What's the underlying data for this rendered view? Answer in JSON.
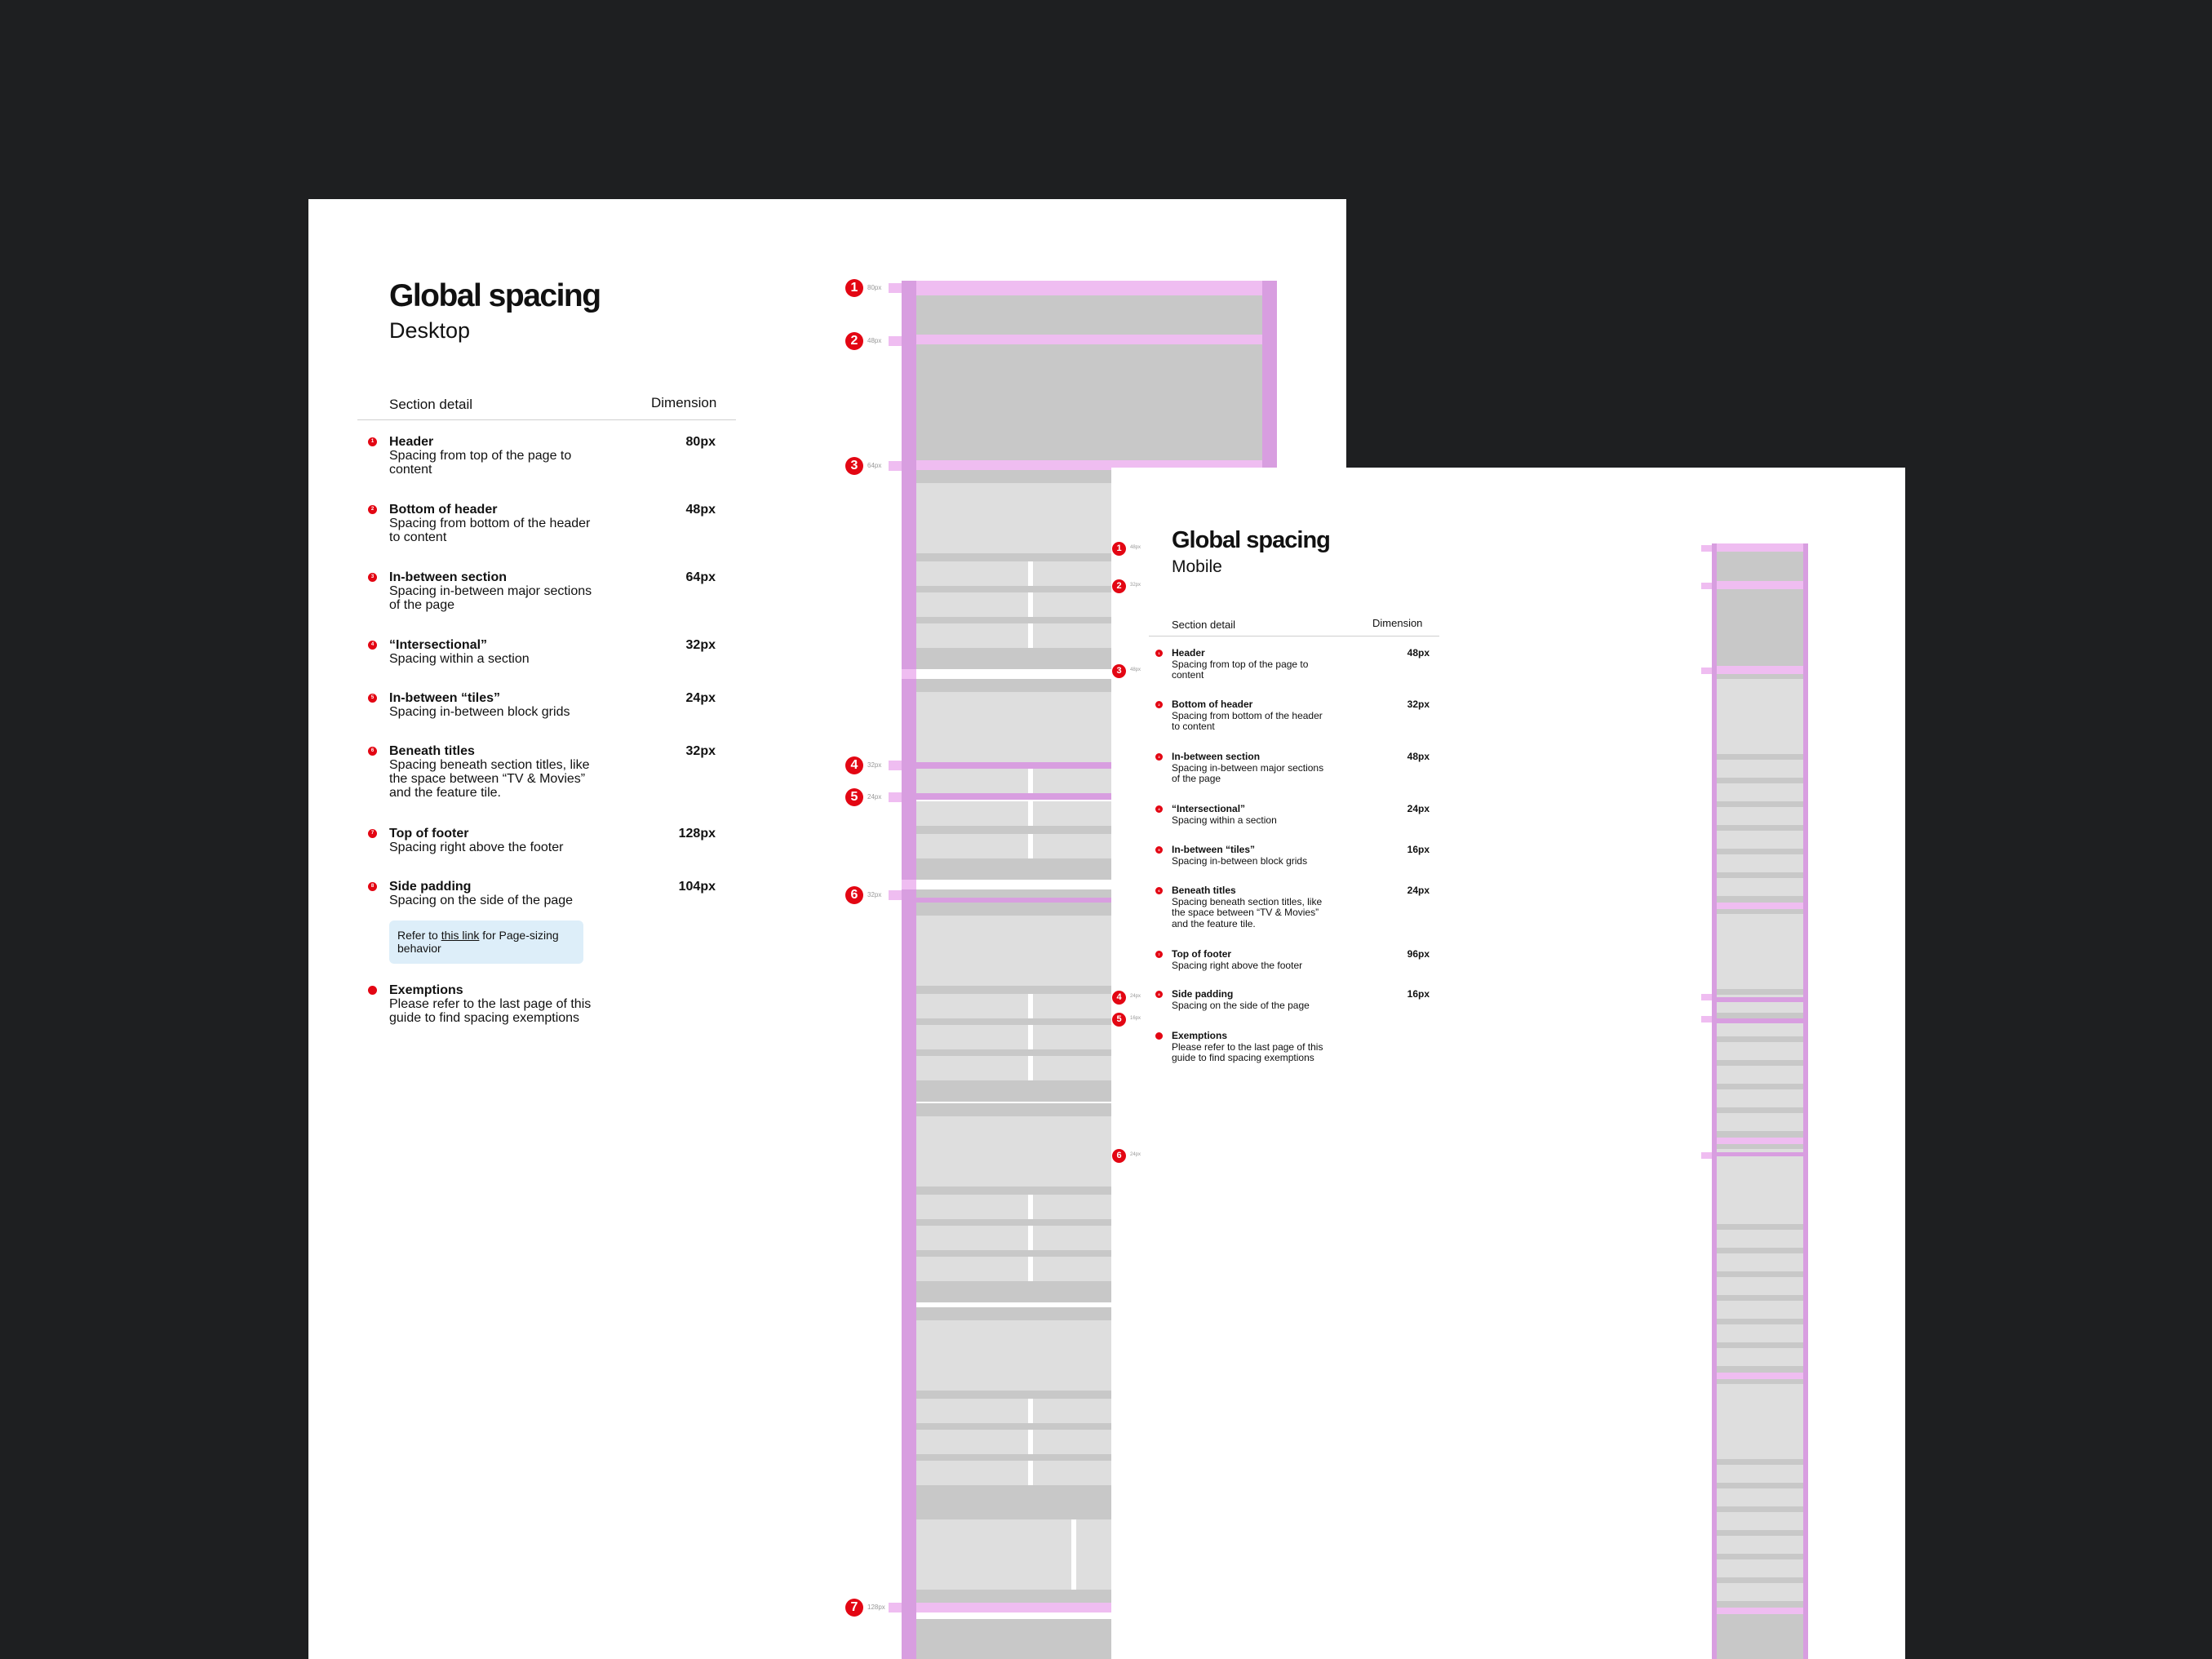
{
  "desktop": {
    "title": "Global spacing",
    "subtitle": "Desktop",
    "col_section": "Section detail",
    "col_dimension": "Dimension",
    "rows": [
      {
        "num": "1",
        "name": "Header",
        "desc": "Spacing from top of the page to content",
        "value": "80px"
      },
      {
        "num": "2",
        "name": "Bottom of header",
        "desc": "Spacing from bottom of the header to content",
        "value": "48px"
      },
      {
        "num": "3",
        "name": "In-between section",
        "desc": "Spacing in-between major sections of the page",
        "value": "64px"
      },
      {
        "num": "4",
        "name": "“Intersectional”",
        "desc": "Spacing within a section",
        "value": "32px"
      },
      {
        "num": "5",
        "name": "In-between “tiles”",
        "desc": "Spacing in-between block grids",
        "value": "24px"
      },
      {
        "num": "6",
        "name": "Beneath titles",
        "desc": "Spacing beneath section titles, like the space between “TV & Movies” and the feature tile.",
        "value": "32px"
      },
      {
        "num": "7",
        "name": "Top of footer",
        "desc": "Spacing right above the footer",
        "value": "128px"
      },
      {
        "num": "8",
        "name": "Side padding",
        "desc": "Spacing on the side of the page",
        "value": "104px"
      },
      {
        "num": "",
        "name": "Exemptions",
        "desc": "Please refer to the last page of this guide to find spacing exemptions",
        "value": ""
      }
    ],
    "note": {
      "prefix": "Refer to ",
      "link": "this link",
      "suffix": " for Page-sizing behavior"
    },
    "markers": [
      {
        "num": "1",
        "label": "80px"
      },
      {
        "num": "2",
        "label": "48px"
      },
      {
        "num": "3",
        "label": "64px"
      },
      {
        "num": "4",
        "label": "32px"
      },
      {
        "num": "5",
        "label": "24px"
      },
      {
        "num": "6",
        "label": "32px"
      },
      {
        "num": "7",
        "label": "128px"
      }
    ]
  },
  "mobile": {
    "title": "Global spacing",
    "subtitle": "Mobile",
    "col_section": "Section detail",
    "col_dimension": "Dimension",
    "rows": [
      {
        "num": "1",
        "name": "Header",
        "desc": "Spacing from top of the page to content",
        "value": "48px"
      },
      {
        "num": "2",
        "name": "Bottom of header",
        "desc": "Spacing from bottom of the header to content",
        "value": "32px"
      },
      {
        "num": "3",
        "name": "In-between section",
        "desc": "Spacing in-between major sections of the page",
        "value": "48px"
      },
      {
        "num": "4",
        "name": "“Intersectional”",
        "desc": "Spacing within a section",
        "value": "24px"
      },
      {
        "num": "5",
        "name": "In-between “tiles”",
        "desc": "Spacing in-between block grids",
        "value": "16px"
      },
      {
        "num": "6",
        "name": "Beneath titles",
        "desc": "Spacing beneath section titles, like the space between “TV & Movies” and the feature tile.",
        "value": "24px"
      },
      {
        "num": "7",
        "name": "Top of footer",
        "desc": "Spacing right above the footer",
        "value": "96px"
      },
      {
        "num": "8",
        "name": "Side padding",
        "desc": "Spacing on the side of the page",
        "value": "16px"
      },
      {
        "num": "",
        "name": "Exemptions",
        "desc": "Please refer to the last page of this guide to find spacing exemptions",
        "value": ""
      }
    ],
    "markers": [
      {
        "num": "1",
        "label": "48px"
      },
      {
        "num": "2",
        "label": "32px"
      },
      {
        "num": "3",
        "label": "48px"
      },
      {
        "num": "4",
        "label": "24px"
      },
      {
        "num": "5",
        "label": "16px"
      },
      {
        "num": "6",
        "label": "24px"
      }
    ]
  },
  "colors": {
    "background": "#1e1f21",
    "accent_red": "#e30613",
    "spacing_pink": "#efbdf1",
    "spacing_purple": "#d89ee0",
    "note_blue": "#ddeef9"
  }
}
